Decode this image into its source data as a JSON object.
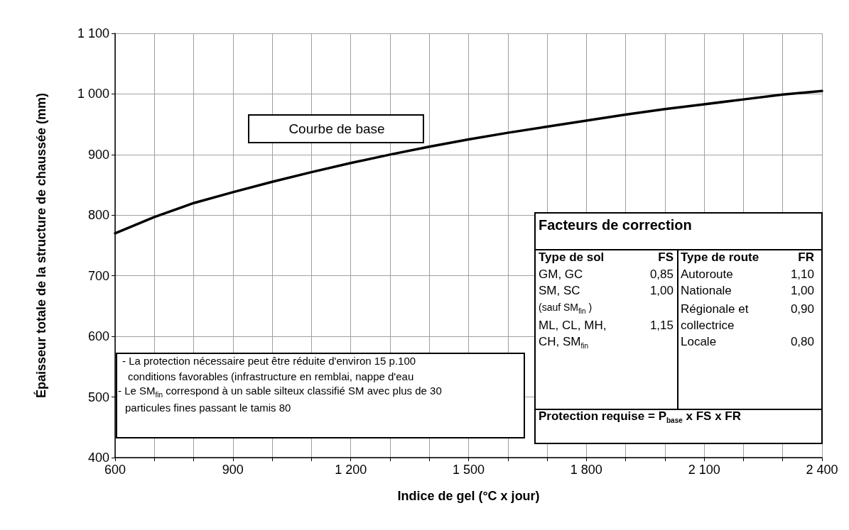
{
  "chart_data": {
    "type": "line",
    "xlabel": "Indice de gel (°C x jour)",
    "ylabel": "Épaisseur totale de la structure de chaussée (mm)",
    "x": [
      600,
      700,
      800,
      900,
      1000,
      1100,
      1200,
      1300,
      1400,
      1500,
      1600,
      1700,
      1800,
      1900,
      2000,
      2100,
      2200,
      2300,
      2400
    ],
    "series": [
      {
        "color": "#000000",
        "values": [
          770,
          797,
          820,
          838,
          855,
          871,
          886,
          900,
          913,
          925,
          936,
          946,
          956,
          966,
          975,
          983,
          991,
          999,
          1005
        ]
      }
    ],
    "xlim": [
      600,
      2400
    ],
    "xticks": [
      {
        "value": 600,
        "label": "600"
      },
      {
        "value": 700,
        "label": null
      },
      {
        "value": 800,
        "label": null
      },
      {
        "value": 900,
        "label": "900"
      },
      {
        "value": 1000,
        "label": null
      },
      {
        "value": 1100,
        "label": null
      },
      {
        "value": 1200,
        "label": "1 200"
      },
      {
        "value": 1300,
        "label": null
      },
      {
        "value": 1400,
        "label": null
      },
      {
        "value": 1500,
        "label": "1 500"
      },
      {
        "value": 1600,
        "label": null
      },
      {
        "value": 1700,
        "label": null
      },
      {
        "value": 1800,
        "label": "1 800"
      },
      {
        "value": 1900,
        "label": null
      },
      {
        "value": 2000,
        "label": null
      },
      {
        "value": 2100,
        "label": "2 100"
      },
      {
        "value": 2200,
        "label": null
      },
      {
        "value": 2300,
        "label": null
      },
      {
        "value": 2400,
        "label": "2 400"
      }
    ],
    "ylim": [
      400,
      1100
    ],
    "yticks": [
      400,
      500,
      600,
      700,
      800,
      900,
      {
        "value": 1000,
        "label": "1 000"
      },
      {
        "value": 1100,
        "label": "1 100"
      }
    ],
    "grid": true,
    "marker": "none",
    "line_style": "solid",
    "annotations": [
      "Courbe de base",
      "- La protection nécessaire peut être réduite d'environ 15 p.100",
      "conditions favorables (infrastructure en remblai, nappe d'eau",
      "- Le SM$_{fin}$ correspond à un sable silteux classifié SM avec plus de 30",
      "particules fines passant le tamis 80",
      "Facteurs de correction",
      "Type de sol",
      "FS",
      "Type de route",
      "FR",
      "GM, GC",
      "0,85",
      "SM, SC",
      "1,00",
      "(sauf SM$_{fin}$ )",
      "ML, CL, MH,",
      "1,15",
      "CH, SM$_{fin}$",
      "Autoroute",
      "1,10",
      "Nationale",
      "1,00",
      "Régionale et",
      "0,90",
      "collectrice",
      "Locale",
      "0,80",
      "Protection requise = P$_{base}$ x FS x FR"
    ]
  }
}
